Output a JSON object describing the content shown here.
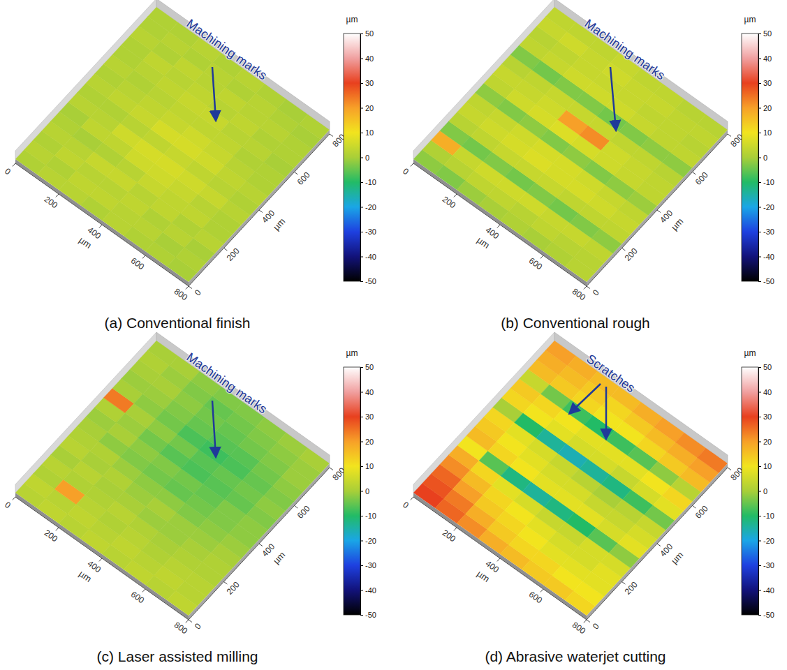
{
  "chart_data": [
    {
      "type": "surface",
      "title": "(a) Conventional finish",
      "annotation": "Machining marks",
      "x_label": "µm",
      "y_label": "µm",
      "xlim": [
        0,
        800
      ],
      "ylim": [
        0,
        800
      ],
      "xticks": [
        0,
        200,
        400,
        600,
        800
      ],
      "yticks": [
        0,
        200,
        400,
        600,
        800
      ],
      "colorbar": {
        "label": "µm",
        "range": [
          -50,
          50
        ],
        "ticks": [
          -50,
          -40,
          -30,
          -20,
          -10,
          0,
          10,
          20,
          30,
          40,
          50
        ]
      },
      "cells": [
        [
          1,
          2,
          1,
          2,
          1,
          0,
          2,
          1,
          2,
          1,
          2,
          1,
          1,
          2,
          1,
          1
        ],
        [
          2,
          1,
          3,
          2,
          0,
          3,
          2,
          1,
          3,
          2,
          1,
          2,
          3,
          1,
          2,
          1
        ],
        [
          2,
          3,
          2,
          4,
          1,
          3,
          5,
          2,
          4,
          3,
          2,
          3,
          2,
          3,
          1,
          2
        ],
        [
          1,
          3,
          2,
          4,
          2,
          5,
          6,
          3,
          6,
          4,
          3,
          4,
          3,
          2,
          2,
          1
        ],
        [
          2,
          2,
          3,
          2,
          4,
          5,
          6,
          4,
          6,
          5,
          3,
          4,
          2,
          3,
          1,
          2
        ],
        [
          1,
          2,
          1,
          3,
          3,
          4,
          5,
          3,
          5,
          4,
          3,
          2,
          3,
          2,
          2,
          1
        ],
        [
          1,
          0,
          2,
          1,
          3,
          2,
          4,
          2,
          3,
          2,
          1,
          2,
          1,
          2,
          1,
          0
        ],
        [
          0,
          1,
          0,
          2,
          1,
          1,
          2,
          1,
          2,
          1,
          1,
          0,
          1,
          1,
          0,
          1
        ]
      ]
    },
    {
      "type": "surface",
      "title": "(b) Conventional rough",
      "annotation": "Machining marks",
      "x_label": "µm",
      "y_label": "µm",
      "xlim": [
        0,
        800
      ],
      "ylim": [
        0,
        800
      ],
      "xticks": [
        0,
        200,
        400,
        600,
        800
      ],
      "yticks": [
        0,
        200,
        400,
        600,
        800
      ],
      "colorbar": {
        "label": "µm",
        "range": [
          -50,
          50
        ],
        "ticks": [
          -50,
          -40,
          -30,
          -20,
          -10,
          0,
          10,
          20,
          30,
          40,
          50
        ]
      },
      "cells": [
        [
          -2,
          1,
          18,
          -3,
          2,
          4,
          3,
          -2,
          3,
          4,
          2,
          -3,
          3,
          2,
          4,
          3
        ],
        [
          -3,
          2,
          4,
          -4,
          3,
          5,
          4,
          -3,
          5,
          4,
          3,
          -4,
          4,
          3,
          5,
          3
        ],
        [
          -1,
          3,
          5,
          -3,
          4,
          6,
          5,
          -2,
          6,
          5,
          4,
          -3,
          5,
          4,
          4,
          3
        ],
        [
          0,
          3,
          5,
          -4,
          4,
          7,
          6,
          -3,
          7,
          20,
          4,
          -3,
          5,
          4,
          5,
          4
        ],
        [
          1,
          2,
          5,
          -3,
          4,
          6,
          6,
          -2,
          6,
          22,
          4,
          -4,
          5,
          4,
          4,
          3
        ],
        [
          0,
          3,
          4,
          -4,
          3,
          6,
          5,
          -3,
          5,
          5,
          3,
          -3,
          4,
          3,
          4,
          3
        ],
        [
          1,
          2,
          4,
          -3,
          3,
          5,
          4,
          -2,
          4,
          4,
          3,
          -2,
          3,
          3,
          3,
          2
        ],
        [
          2,
          2,
          3,
          -2,
          3,
          4,
          3,
          -1,
          3,
          3,
          2,
          -2,
          3,
          2,
          3,
          2
        ]
      ]
    },
    {
      "type": "surface",
      "title": "(c) Laser assisted milling",
      "annotation": "Machining marks",
      "x_label": "µm",
      "y_label": "µm",
      "xlim": [
        0,
        800
      ],
      "ylim": [
        0,
        800
      ],
      "xticks": [
        0,
        200,
        400,
        600,
        800
      ],
      "yticks": [
        0,
        200,
        400,
        600,
        800
      ],
      "colorbar": {
        "label": "µm",
        "range": [
          -50,
          50
        ],
        "ticks": [
          -50,
          -40,
          -30,
          -20,
          -10,
          0,
          10,
          20,
          30,
          40,
          50
        ]
      },
      "cells": [
        [
          2,
          3,
          1,
          2,
          0,
          2,
          1,
          0,
          -1,
          1,
          24,
          0,
          -1,
          0,
          1,
          0
        ],
        [
          3,
          2,
          20,
          1,
          2,
          0,
          1,
          -2,
          0,
          -1,
          0,
          -2,
          -1,
          0,
          -1,
          0
        ],
        [
          2,
          3,
          2,
          1,
          0,
          1,
          -1,
          -3,
          -2,
          -4,
          -2,
          -4,
          -3,
          -2,
          -3,
          -2
        ],
        [
          3,
          2,
          1,
          2,
          0,
          -1,
          -2,
          -4,
          -3,
          -6,
          -4,
          -7,
          -5,
          -4,
          -5,
          -3
        ],
        [
          2,
          3,
          2,
          1,
          -1,
          0,
          -2,
          -5,
          -4,
          -7,
          -6,
          -8,
          -6,
          -5,
          -4,
          -3
        ],
        [
          3,
          2,
          1,
          0,
          -1,
          -1,
          -3,
          -4,
          -5,
          -6,
          -5,
          -7,
          -6,
          -4,
          -3,
          -2
        ],
        [
          2,
          3,
          2,
          1,
          0,
          -1,
          -2,
          -3,
          -3,
          -5,
          -4,
          -5,
          -4,
          -3,
          -2,
          -1
        ],
        [
          3,
          2,
          2,
          1,
          1,
          0,
          -1,
          -2,
          -2,
          -3,
          -2,
          -3,
          -2,
          -1,
          -1,
          0
        ]
      ]
    },
    {
      "type": "surface",
      "title": "(d) Abrasive waterjet cutting",
      "annotation": "Scratches",
      "x_label": "µm",
      "y_label": "µm",
      "xlim": [
        0,
        800
      ],
      "ylim": [
        0,
        800
      ],
      "xticks": [
        0,
        200,
        400,
        600,
        800
      ],
      "yticks": [
        0,
        200,
        400,
        600,
        800
      ],
      "colorbar": {
        "label": "µm",
        "range": [
          -50,
          50
        ],
        "ticks": [
          -50,
          -40,
          -30,
          -20,
          -10,
          0,
          10,
          20,
          30,
          40,
          50
        ]
      },
      "cells": [
        [
          30,
          28,
          26,
          22,
          18,
          10,
          16,
          14,
          12,
          0,
          12,
          14,
          4,
          16,
          18,
          20
        ],
        [
          26,
          24,
          20,
          16,
          12,
          -6,
          12,
          10,
          8,
          -10,
          10,
          12,
          -4,
          14,
          16,
          18
        ],
        [
          22,
          18,
          14,
          12,
          8,
          -12,
          10,
          8,
          6,
          -14,
          8,
          10,
          -8,
          12,
          14,
          16
        ],
        [
          18,
          14,
          12,
          10,
          6,
          -14,
          8,
          6,
          4,
          -16,
          6,
          8,
          -10,
          10,
          12,
          16
        ],
        [
          16,
          12,
          10,
          8,
          4,
          -12,
          8,
          6,
          2,
          -14,
          6,
          8,
          -8,
          10,
          14,
          18
        ],
        [
          14,
          12,
          8,
          6,
          4,
          -10,
          8,
          4,
          0,
          -12,
          4,
          8,
          -6,
          12,
          16,
          20
        ],
        [
          14,
          10,
          8,
          6,
          6,
          -6,
          6,
          4,
          2,
          -8,
          6,
          10,
          -2,
          14,
          18,
          22
        ],
        [
          12,
          10,
          8,
          8,
          6,
          -2,
          8,
          6,
          4,
          -4,
          8,
          12,
          2,
          16,
          20,
          24
        ]
      ]
    }
  ]
}
